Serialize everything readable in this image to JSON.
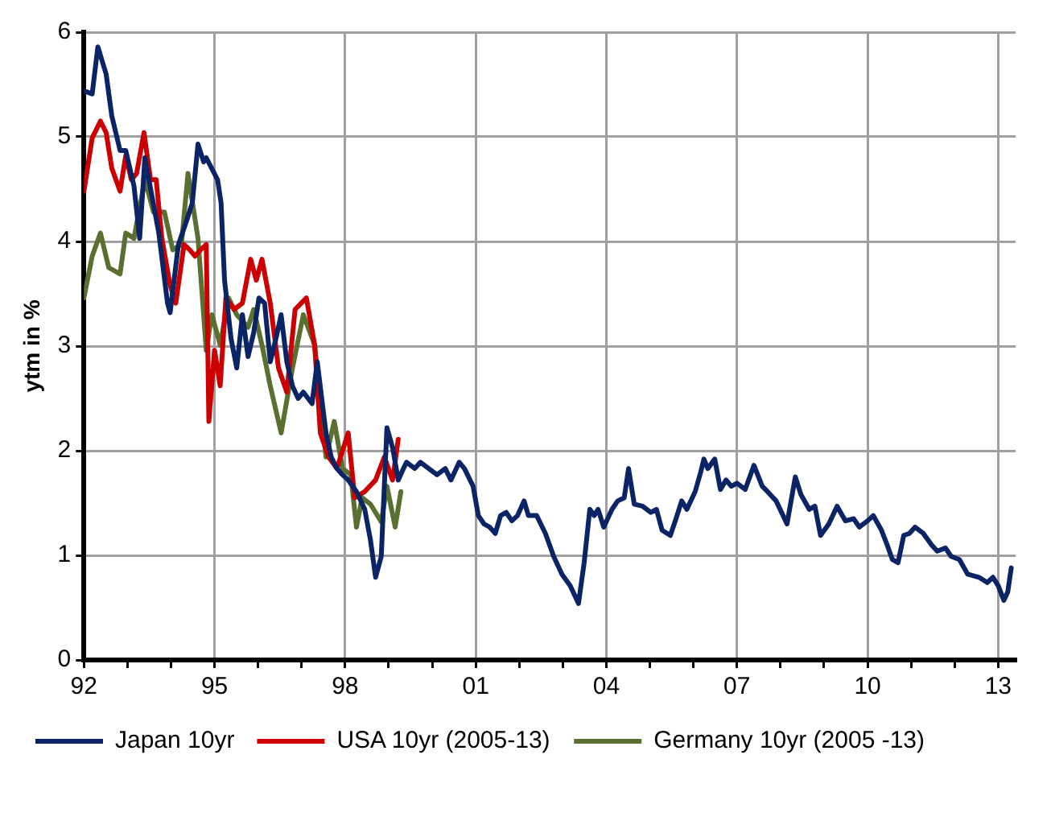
{
  "chart_data": {
    "type": "line",
    "ylabel": "ytm in %",
    "xlim": [
      1992,
      2013.4
    ],
    "ylim": [
      0,
      6
    ],
    "xticks": [
      {
        "value": 1992,
        "label": "92"
      },
      {
        "value": 1993,
        "label": null
      },
      {
        "value": 1994,
        "label": null
      },
      {
        "value": 1995,
        "label": "95"
      },
      {
        "value": 1996,
        "label": null
      },
      {
        "value": 1997,
        "label": null
      },
      {
        "value": 1998,
        "label": "98"
      },
      {
        "value": 1999,
        "label": null
      },
      {
        "value": 2000,
        "label": null
      },
      {
        "value": 2001,
        "label": "01"
      },
      {
        "value": 2002,
        "label": null
      },
      {
        "value": 2003,
        "label": null
      },
      {
        "value": 2004,
        "label": "04"
      },
      {
        "value": 2005,
        "label": null
      },
      {
        "value": 2006,
        "label": null
      },
      {
        "value": 2007,
        "label": "07"
      },
      {
        "value": 2008,
        "label": null
      },
      {
        "value": 2009,
        "label": null
      },
      {
        "value": 2010,
        "label": "10"
      },
      {
        "value": 2011,
        "label": null
      },
      {
        "value": 2012,
        "label": null
      },
      {
        "value": 2013,
        "label": "13"
      }
    ],
    "yticks": [
      0,
      1,
      2,
      3,
      4,
      5,
      6
    ],
    "grid": true,
    "legend": "bottom",
    "marker": "none",
    "line_style": "solid",
    "series": [
      {
        "name": "Japan 10yr",
        "color": "#0b2466",
        "x": [
          1992.0,
          1992.19,
          1992.32,
          1992.51,
          1992.64,
          1992.83,
          1992.96,
          1993.15,
          1993.28,
          1993.4,
          1993.72,
          1993.92,
          1993.98,
          1994.17,
          1994.36,
          1994.49,
          1994.62,
          1994.75,
          1994.81,
          1995.07,
          1995.15,
          1995.23,
          1995.38,
          1995.51,
          1995.64,
          1995.77,
          1995.9,
          1996.02,
          1996.15,
          1996.28,
          1996.41,
          1996.53,
          1996.66,
          1996.79,
          1996.92,
          1997.04,
          1997.24,
          1997.36,
          1997.56,
          1997.68,
          1997.81,
          1997.94,
          1998.07,
          1998.26,
          1998.45,
          1998.58,
          1998.7,
          1998.83,
          1998.9,
          1998.96,
          1999.09,
          1999.22,
          1999.34,
          1999.41,
          1999.6,
          1999.73,
          1999.92,
          2000.11,
          2000.3,
          2000.43,
          2000.62,
          2000.74,
          2000.94,
          2001.06,
          2001.19,
          2001.32,
          2001.45,
          2001.57,
          2001.7,
          2001.83,
          2001.96,
          2002.11,
          2002.21,
          2002.4,
          2002.6,
          2002.79,
          2002.98,
          2003.17,
          2003.36,
          2003.49,
          2003.62,
          2003.72,
          2003.81,
          2003.94,
          2004.13,
          2004.26,
          2004.41,
          2004.51,
          2004.64,
          2004.83,
          2005.02,
          2005.15,
          2005.28,
          2005.47,
          2005.6,
          2005.73,
          2005.85,
          2006.04,
          2006.17,
          2006.24,
          2006.33,
          2006.49,
          2006.62,
          2006.75,
          2006.87,
          2007.0,
          2007.19,
          2007.39,
          2007.58,
          2007.7,
          2007.9,
          2008.15,
          2008.34,
          2008.47,
          2008.66,
          2008.79,
          2008.92,
          2009.11,
          2009.3,
          2009.49,
          2009.68,
          2009.81,
          2010.0,
          2010.13,
          2010.32,
          2010.45,
          2010.57,
          2010.7,
          2010.83,
          2010.96,
          2011.09,
          2011.28,
          2011.47,
          2011.6,
          2011.79,
          2011.92,
          2012.11,
          2012.3,
          2012.56,
          2012.75,
          2012.88,
          2013.0,
          2013.13,
          2013.22,
          2013.3
        ],
        "values": [
          5.44,
          5.41,
          5.86,
          5.6,
          5.2,
          4.87,
          4.87,
          4.53,
          4.03,
          4.8,
          4.08,
          3.41,
          3.32,
          3.97,
          4.2,
          4.37,
          4.93,
          4.76,
          4.8,
          4.59,
          4.37,
          3.63,
          3.07,
          2.79,
          3.3,
          2.9,
          3.13,
          3.46,
          3.41,
          2.85,
          3.07,
          3.3,
          2.85,
          2.62,
          2.5,
          2.56,
          2.45,
          2.85,
          2.17,
          1.94,
          1.83,
          1.77,
          1.72,
          1.61,
          1.44,
          1.15,
          0.79,
          0.99,
          1.66,
          2.22,
          2.03,
          1.72,
          1.83,
          1.89,
          1.83,
          1.89,
          1.83,
          1.77,
          1.83,
          1.72,
          1.89,
          1.83,
          1.66,
          1.38,
          1.3,
          1.27,
          1.21,
          1.38,
          1.41,
          1.33,
          1.38,
          1.52,
          1.38,
          1.38,
          1.21,
          0.99,
          0.82,
          0.71,
          0.54,
          0.93,
          1.44,
          1.38,
          1.44,
          1.27,
          1.44,
          1.52,
          1.55,
          1.83,
          1.49,
          1.47,
          1.41,
          1.44,
          1.24,
          1.19,
          1.35,
          1.52,
          1.44,
          1.61,
          1.8,
          1.92,
          1.83,
          1.92,
          1.63,
          1.72,
          1.66,
          1.69,
          1.63,
          1.86,
          1.66,
          1.61,
          1.52,
          1.3,
          1.75,
          1.58,
          1.44,
          1.47,
          1.19,
          1.3,
          1.47,
          1.33,
          1.35,
          1.27,
          1.33,
          1.38,
          1.24,
          1.1,
          0.96,
          0.93,
          1.19,
          1.21,
          1.27,
          1.21,
          1.1,
          1.04,
          1.07,
          0.99,
          0.96,
          0.82,
          0.79,
          0.74,
          0.79,
          0.71,
          0.57,
          0.65,
          0.88
        ]
      },
      {
        "name": "USA 10yr (2005-13)",
        "color": "#cc0000",
        "x": [
          1992.0,
          1992.19,
          1992.38,
          1992.51,
          1992.64,
          1992.83,
          1992.96,
          1993.09,
          1993.21,
          1993.38,
          1993.53,
          1993.66,
          1993.79,
          1993.98,
          1994.11,
          1994.3,
          1994.43,
          1994.55,
          1994.68,
          1994.81,
          1994.87,
          1995.0,
          1995.13,
          1995.26,
          1995.45,
          1995.64,
          1995.83,
          1995.96,
          1996.09,
          1996.28,
          1996.47,
          1996.66,
          1996.85,
          1997.11,
          1997.3,
          1997.43,
          1997.62,
          1997.81,
          1998.07,
          1998.22,
          1998.45,
          1998.7,
          1998.9,
          1999.09,
          1999.22
        ],
        "values": [
          4.48,
          4.99,
          5.15,
          5.04,
          4.7,
          4.48,
          4.82,
          4.59,
          4.65,
          5.04,
          4.59,
          4.59,
          4.03,
          3.58,
          3.41,
          3.97,
          3.92,
          3.86,
          3.92,
          3.97,
          2.28,
          2.96,
          2.62,
          3.46,
          3.35,
          3.41,
          3.83,
          3.63,
          3.83,
          3.41,
          2.79,
          2.56,
          3.35,
          3.46,
          3.01,
          2.17,
          1.94,
          1.83,
          2.17,
          1.55,
          1.61,
          1.72,
          1.94,
          1.72,
          2.11
        ]
      },
      {
        "name": "Germany 10yr (2005 -13)",
        "color": "#5a7030",
        "x": [
          1992.0,
          1992.19,
          1992.38,
          1992.57,
          1992.83,
          1992.96,
          1993.15,
          1993.4,
          1993.6,
          1993.85,
          1994.04,
          1994.24,
          1994.39,
          1994.62,
          1994.81,
          1994.94,
          1995.13,
          1995.32,
          1995.51,
          1995.77,
          1995.9,
          1996.09,
          1996.28,
          1996.53,
          1996.79,
          1997.04,
          1997.3,
          1997.56,
          1997.75,
          1997.94,
          1998.13,
          1998.26,
          1998.39,
          1998.58,
          1998.83,
          1998.96,
          1999.15,
          1999.28
        ],
        "values": [
          3.46,
          3.86,
          4.08,
          3.75,
          3.69,
          4.08,
          4.03,
          4.59,
          4.28,
          4.28,
          3.92,
          3.97,
          4.65,
          4.03,
          2.96,
          3.3,
          3.01,
          3.46,
          3.3,
          3.18,
          3.35,
          3.01,
          2.62,
          2.17,
          2.79,
          3.3,
          3.01,
          1.94,
          2.28,
          1.83,
          1.77,
          1.27,
          1.55,
          1.49,
          1.32,
          1.66,
          1.27,
          1.61
        ]
      }
    ]
  }
}
